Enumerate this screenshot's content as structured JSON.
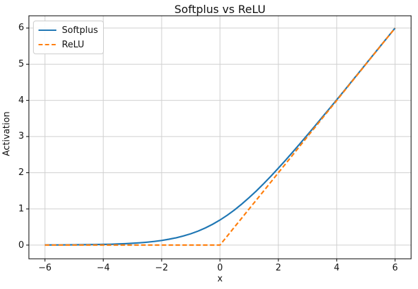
{
  "chart_data": {
    "type": "line",
    "title": "Softplus vs ReLU",
    "xlabel": "x",
    "ylabel": "Activation",
    "xlim": [
      -6.55,
      6.55
    ],
    "ylim": [
      -0.38,
      6.34
    ],
    "grid": true,
    "legend_position": "upper-left",
    "background_color": "#ffffff",
    "grid_color": "#cfcfcf",
    "spine_color": "#000000",
    "text_color": "#111111",
    "xticks": [
      -6,
      -4,
      -2,
      0,
      2,
      4,
      6
    ],
    "xtick_labels": [
      "−6",
      "−4",
      "−2",
      "0",
      "2",
      "4",
      "6"
    ],
    "yticks": [
      0,
      1,
      2,
      3,
      4,
      5,
      6
    ],
    "ytick_labels": [
      "0",
      "1",
      "2",
      "3",
      "4",
      "5",
      "6"
    ],
    "x": [
      -6,
      -5.75,
      -5.5,
      -5.25,
      -5,
      -4.75,
      -4.5,
      -4.25,
      -4,
      -3.75,
      -3.5,
      -3.25,
      -3,
      -2.75,
      -2.5,
      -2.25,
      -2,
      -1.75,
      -1.5,
      -1.25,
      -1,
      -0.75,
      -0.5,
      -0.25,
      0,
      0.25,
      0.5,
      0.75,
      1,
      1.25,
      1.5,
      1.75,
      2,
      2.25,
      2.5,
      2.75,
      3,
      3.25,
      3.5,
      3.75,
      4,
      4.25,
      4.5,
      4.75,
      5,
      5.25,
      5.5,
      5.75,
      6
    ],
    "series": [
      {
        "name": "Softplus",
        "color": "#1f77b4",
        "style": "solid",
        "values": [
          0.0025,
          0.0032,
          0.0041,
          0.0052,
          0.0067,
          0.0086,
          0.011,
          0.0142,
          0.0181,
          0.0232,
          0.0297,
          0.038,
          0.0486,
          0.062,
          0.0789,
          0.1002,
          0.1269,
          0.1602,
          0.2014,
          0.2519,
          0.3133,
          0.3867,
          0.4741,
          0.576,
          0.6931,
          0.826,
          0.9741,
          1.1367,
          1.3133,
          1.5019,
          1.7014,
          1.9102,
          2.1269,
          2.3502,
          2.5789,
          2.812,
          3.0486,
          3.288,
          3.5297,
          3.7732,
          4.0181,
          4.2642,
          4.511,
          4.7586,
          5.0067,
          5.2552,
          5.5041,
          5.7532,
          6.0025
        ]
      },
      {
        "name": "ReLU",
        "color": "#ff7f0e",
        "style": "dashed",
        "values": [
          0,
          0,
          0,
          0,
          0,
          0,
          0,
          0,
          0,
          0,
          0,
          0,
          0,
          0,
          0,
          0,
          0,
          0,
          0,
          0,
          0,
          0,
          0,
          0,
          0,
          0.25,
          0.5,
          0.75,
          1,
          1.25,
          1.5,
          1.75,
          2,
          2.25,
          2.5,
          2.75,
          3,
          3.25,
          3.5,
          3.75,
          4,
          4.25,
          4.5,
          4.75,
          5,
          5.25,
          5.5,
          5.75,
          6
        ]
      }
    ]
  }
}
